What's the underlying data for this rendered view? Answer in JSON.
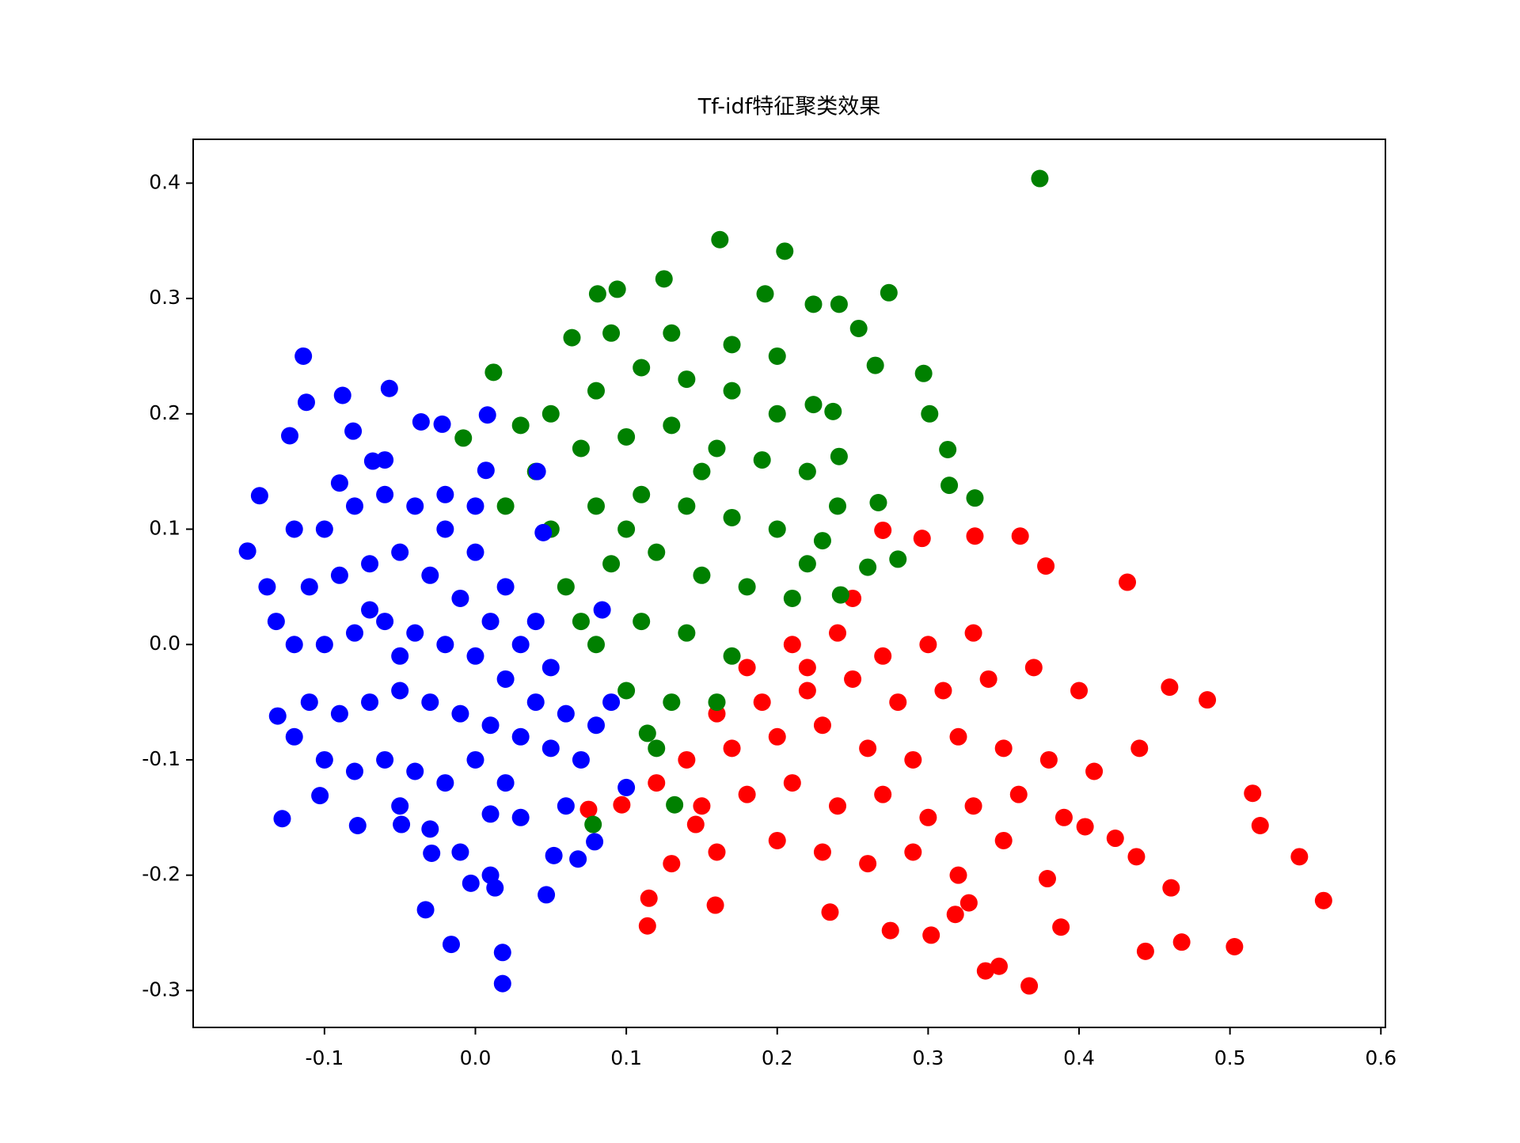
{
  "chart_data": {
    "type": "scatter",
    "title": "Tf-idf特征聚类效果",
    "xlim": [
      -0.187,
      0.603
    ],
    "ylim": [
      -0.332,
      0.438
    ],
    "xticks": [
      -0.1,
      {
        "value": 0,
        "label": "0.0"
      },
      0.1,
      0.2,
      0.3,
      0.4,
      0.5,
      0.6
    ],
    "yticks": [
      -0.3,
      -0.2,
      -0.1,
      {
        "value": 0,
        "label": "0.0"
      },
      0.1,
      0.2,
      0.3,
      0.4
    ],
    "series": [
      {
        "color": "#ff0000",
        "x": [
          0.562,
          0.546,
          0.515,
          0.52,
          0.485,
          0.46,
          0.432,
          0.378,
          0.361,
          0.331,
          0.296,
          0.27,
          0.367,
          0.347,
          0.338,
          0.302,
          0.275,
          0.235,
          0.159,
          0.114,
          0.115,
          0.444,
          0.503,
          0.468,
          0.388,
          0.461,
          0.438,
          0.424,
          0.404,
          0.379,
          0.327,
          0.318,
          0.075,
          0.097,
          0.146,
          0.18,
          0.21,
          0.24,
          0.27,
          0.16,
          0.19,
          0.22,
          0.25,
          0.28,
          0.31,
          0.34,
          0.37,
          0.4,
          0.14,
          0.17,
          0.2,
          0.23,
          0.26,
          0.29,
          0.32,
          0.35,
          0.38,
          0.41,
          0.44,
          0.15,
          0.18,
          0.21,
          0.24,
          0.27,
          0.3,
          0.33,
          0.36,
          0.39,
          0.2,
          0.23,
          0.26,
          0.29,
          0.32,
          0.35,
          0.13,
          0.16,
          0.22,
          0.3,
          0.33,
          0.25,
          0.12
        ],
        "y": [
          -0.222,
          -0.184,
          -0.129,
          -0.157,
          -0.048,
          -0.037,
          0.054,
          0.068,
          0.094,
          0.094,
          0.092,
          0.099,
          -0.296,
          -0.279,
          -0.283,
          -0.252,
          -0.248,
          -0.232,
          -0.226,
          -0.244,
          -0.22,
          -0.266,
          -0.262,
          -0.258,
          -0.245,
          -0.211,
          -0.184,
          -0.168,
          -0.158,
          -0.203,
          -0.224,
          -0.234,
          -0.143,
          -0.139,
          -0.156,
          -0.02,
          0,
          0.01,
          -0.01,
          -0.06,
          -0.05,
          -0.04,
          -0.03,
          -0.05,
          -0.04,
          -0.03,
          -0.02,
          -0.04,
          -0.1,
          -0.09,
          -0.08,
          -0.07,
          -0.09,
          -0.1,
          -0.08,
          -0.09,
          -0.1,
          -0.11,
          -0.09,
          -0.14,
          -0.13,
          -0.12,
          -0.14,
          -0.13,
          -0.15,
          -0.14,
          -0.13,
          -0.15,
          -0.17,
          -0.18,
          -0.19,
          -0.18,
          -0.2,
          -0.17,
          -0.19,
          -0.18,
          -0.02,
          0,
          0.01,
          0.04,
          -0.12
        ]
      },
      {
        "color": "#008000",
        "x": [
          0.374,
          0.162,
          0.205,
          0.274,
          0.125,
          0.297,
          0.301,
          0.313,
          0.314,
          0.331,
          0.28,
          0.242,
          0.267,
          0.26,
          0.064,
          0.012,
          -0.008,
          0.132,
          0.114,
          0.078,
          0.081,
          0.094,
          0.224,
          0.241,
          0.254,
          0.192,
          0.265,
          0.237,
          0.224,
          0.241,
          0.05,
          0.08,
          0.11,
          0.14,
          0.17,
          0.2,
          0.04,
          0.07,
          0.1,
          0.13,
          0.16,
          0.19,
          0.22,
          0.05,
          0.08,
          0.11,
          0.14,
          0.17,
          0.2,
          0.23,
          0.06,
          0.09,
          0.12,
          0.15,
          0.18,
          0.21,
          0.08,
          0.11,
          0.14,
          0.17,
          0.1,
          0.13,
          0.16,
          0.09,
          0.13,
          0.17,
          0.2,
          0.03,
          0.02,
          0.24,
          0.22,
          0.07,
          0.15,
          0.12,
          0.1
        ],
        "y": [
          0.404,
          0.351,
          0.341,
          0.305,
          0.317,
          0.235,
          0.2,
          0.169,
          0.138,
          0.127,
          0.074,
          0.043,
          0.123,
          0.067,
          0.266,
          0.236,
          0.179,
          -0.139,
          -0.077,
          -0.156,
          0.304,
          0.308,
          0.295,
          0.295,
          0.274,
          0.304,
          0.242,
          0.202,
          0.208,
          0.163,
          0.2,
          0.22,
          0.24,
          0.23,
          0.22,
          0.2,
          0.15,
          0.17,
          0.18,
          0.19,
          0.17,
          0.16,
          0.15,
          0.1,
          0.12,
          0.13,
          0.12,
          0.11,
          0.1,
          0.09,
          0.05,
          0.07,
          0.08,
          0.06,
          0.05,
          0.04,
          0,
          0.02,
          0.01,
          -0.01,
          -0.04,
          -0.05,
          -0.05,
          0.27,
          0.27,
          0.26,
          0.25,
          0.19,
          0.12,
          0.12,
          0.07,
          0.02,
          0.15,
          -0.09,
          0.1
        ]
      },
      {
        "color": "#0000ff",
        "x": [
          -0.151,
          -0.114,
          -0.112,
          -0.088,
          -0.057,
          -0.123,
          -0.143,
          -0.138,
          -0.132,
          -0.131,
          -0.128,
          -0.103,
          -0.078,
          -0.022,
          0.008,
          0.007,
          0.041,
          0.045,
          0.084,
          0.018,
          0.018,
          -0.016,
          -0.033,
          0.047,
          0.079,
          0.052,
          0.068,
          0.1,
          0.01,
          -0.049,
          -0.003,
          0.013,
          -0.029,
          -0.036,
          -0.081,
          -0.068,
          -0.1,
          -0.08,
          -0.06,
          -0.04,
          -0.02,
          0,
          0.02,
          0.04,
          -0.11,
          -0.09,
          -0.07,
          -0.05,
          -0.03,
          -0.01,
          0.01,
          0.03,
          0.05,
          -0.12,
          -0.1,
          -0.08,
          -0.06,
          -0.04,
          -0.02,
          0,
          0.02,
          0.04,
          0.06,
          0.08,
          0.09,
          -0.11,
          -0.09,
          -0.07,
          -0.05,
          -0.03,
          -0.01,
          0.01,
          0.03,
          0.05,
          -0.1,
          -0.08,
          -0.06,
          -0.04,
          -0.02,
          0,
          0.02,
          -0.05,
          -0.03,
          -0.01,
          0.01,
          -0.12,
          -0.09,
          -0.07,
          -0.05,
          -0.02,
          0,
          -0.12,
          -0.06,
          0.07,
          0.06,
          0.03
        ],
        "y": [
          0.081,
          0.25,
          0.21,
          0.216,
          0.222,
          0.181,
          0.129,
          0.05,
          0.02,
          -0.062,
          -0.151,
          -0.131,
          -0.157,
          0.191,
          0.199,
          0.151,
          0.15,
          0.097,
          0.03,
          -0.294,
          -0.267,
          -0.26,
          -0.23,
          -0.217,
          -0.171,
          -0.183,
          -0.186,
          -0.124,
          -0.147,
          -0.156,
          -0.207,
          -0.211,
          -0.181,
          0.193,
          0.185,
          0.159,
          0.1,
          0.12,
          0.13,
          0.12,
          0.1,
          0.08,
          0.05,
          0.02,
          0.05,
          0.06,
          0.07,
          0.08,
          0.06,
          0.04,
          0.02,
          0,
          -0.02,
          0,
          0,
          0.01,
          0.02,
          0.01,
          0,
          -0.01,
          -0.03,
          -0.05,
          -0.06,
          -0.07,
          -0.05,
          -0.05,
          -0.06,
          -0.05,
          -0.04,
          -0.05,
          -0.06,
          -0.07,
          -0.08,
          -0.09,
          -0.1,
          -0.11,
          -0.1,
          -0.11,
          -0.12,
          -0.1,
          -0.12,
          -0.14,
          -0.16,
          -0.18,
          -0.2,
          0.1,
          0.14,
          0.03,
          -0.01,
          0.13,
          0.12,
          -0.08,
          0.16,
          -0.1,
          -0.14,
          -0.15
        ]
      }
    ]
  }
}
